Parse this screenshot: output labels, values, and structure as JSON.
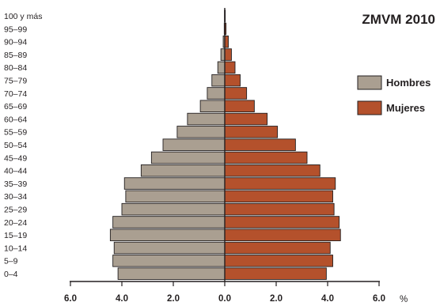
{
  "chart_data": {
    "type": "bar",
    "title": "ZMVM 2010",
    "unit_label": "%",
    "orientation": "horizontal-pyramid",
    "categories": [
      "100 y más",
      "95–99",
      "90–94",
      "85–89",
      "80–84",
      "75–79",
      "70–74",
      "65–69",
      "60–64",
      "55–59",
      "50–54",
      "45–49",
      "40–44",
      "35–39",
      "30–34",
      "25–29",
      "20–24",
      "15–19",
      "10–14",
      "5–9",
      "0–4"
    ],
    "series": [
      {
        "name": "Hombres",
        "color": "#aa9f91",
        "side": "left",
        "values": [
          0.01,
          0.02,
          0.06,
          0.15,
          0.27,
          0.5,
          0.68,
          0.95,
          1.45,
          1.85,
          2.4,
          2.85,
          3.25,
          3.9,
          3.85,
          4.0,
          4.35,
          4.45,
          4.3,
          4.35,
          4.15
        ]
      },
      {
        "name": "Mujeres",
        "color": "#b4512c",
        "side": "right",
        "values": [
          0.02,
          0.05,
          0.14,
          0.26,
          0.4,
          0.6,
          0.85,
          1.15,
          1.65,
          2.05,
          2.75,
          3.2,
          3.7,
          4.3,
          4.2,
          4.25,
          4.45,
          4.5,
          4.1,
          4.2,
          3.95
        ]
      }
    ],
    "x_ticks": [
      "6.0",
      "4.0",
      "2.0",
      "0.0",
      "2.0",
      "4.0",
      "6.0"
    ],
    "xlim": [
      -6,
      6
    ],
    "legend_position": "right",
    "grid": false
  }
}
